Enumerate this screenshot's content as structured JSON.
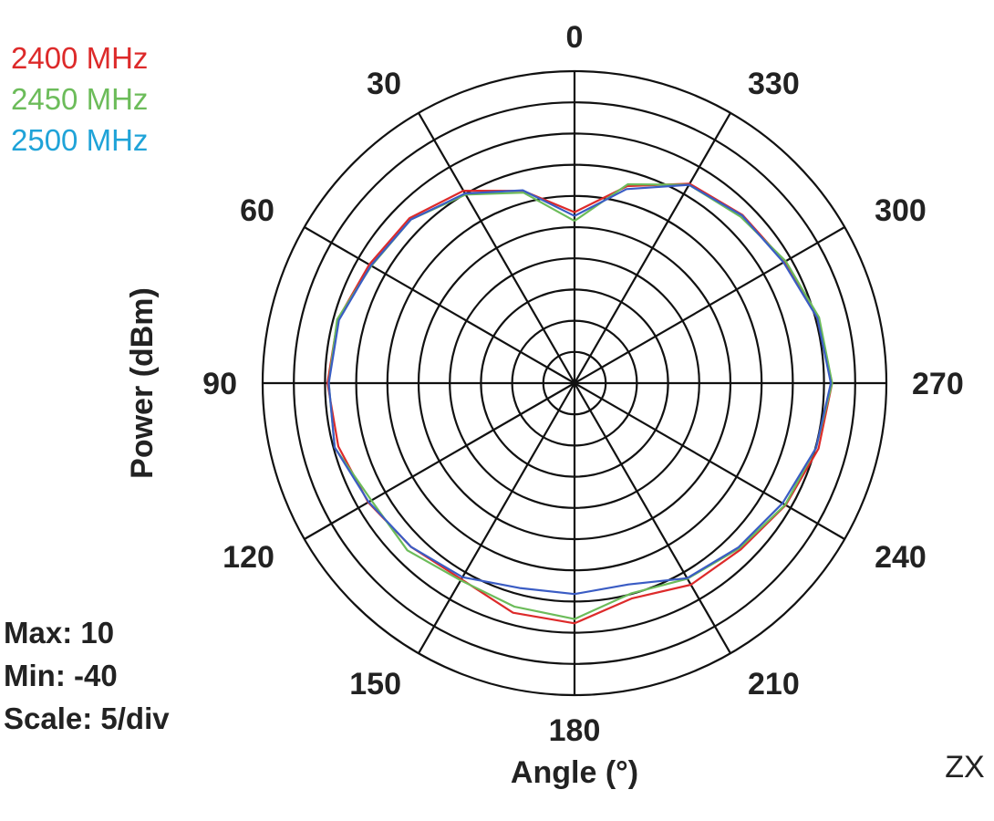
{
  "chart_data": {
    "type": "polar-line",
    "xlabel": "Angle  (°)",
    "ylabel": "Power  (dBm)",
    "corner_label": "ZX",
    "stats": {
      "max": "Max: 10",
      "min": "Min: -40",
      "scale": "Scale: 5/div"
    },
    "r_min": -40,
    "r_max": 10,
    "r_step": 5,
    "angle_ticks": [
      "0",
      "30",
      "60",
      "90",
      "120",
      "150",
      "180",
      "210",
      "240",
      "270",
      "300",
      "330"
    ],
    "angle_tick_values": [
      0,
      30,
      60,
      90,
      120,
      150,
      180,
      210,
      240,
      270,
      300,
      330
    ],
    "angles": [
      0,
      15,
      30,
      45,
      60,
      75,
      90,
      105,
      120,
      135,
      150,
      165,
      180,
      195,
      210,
      225,
      240,
      255,
      270,
      285,
      300,
      315,
      330,
      345,
      360
    ],
    "series": [
      {
        "name": "2400 MHz",
        "color": "#dd2a2a",
        "values": [
          -12.6,
          -8.1,
          -4.4,
          -2.6,
          -2.0,
          -0.7,
          -0.4,
          -0.8,
          -1.8,
          -2.9,
          -3.7,
          -1.9,
          -1.5,
          -4.3,
          -2.7,
          -2.3,
          -0.9,
          0.5,
          1.3,
          0.3,
          -1.1,
          -1.9,
          -3.1,
          -7.3,
          -12.6
        ]
      },
      {
        "name": "2450 MHz",
        "color": "#6cbc5a",
        "values": [
          -14.0,
          -8.4,
          -5.1,
          -2.9,
          -2.4,
          -0.6,
          -0.6,
          -0.2,
          -2.4,
          -2.1,
          -3.5,
          -2.9,
          -2.2,
          -5.1,
          -3.8,
          -2.6,
          -1.0,
          0.1,
          1.3,
          0.6,
          -0.9,
          -2.3,
          -3.3,
          -7.0,
          -14.0
        ]
      },
      {
        "name": "2500 MHz",
        "color": "#3a5cc4",
        "values": [
          -13.2,
          -8.0,
          -4.9,
          -2.9,
          -2.3,
          -0.9,
          -0.6,
          -0.2,
          -1.9,
          -2.9,
          -4.1,
          -6.0,
          -6.2,
          -6.6,
          -3.9,
          -2.8,
          -1.5,
          0.1,
          1.1,
          0.3,
          -1.3,
          -2.0,
          -3.3,
          -7.8,
          -13.2
        ]
      }
    ]
  }
}
